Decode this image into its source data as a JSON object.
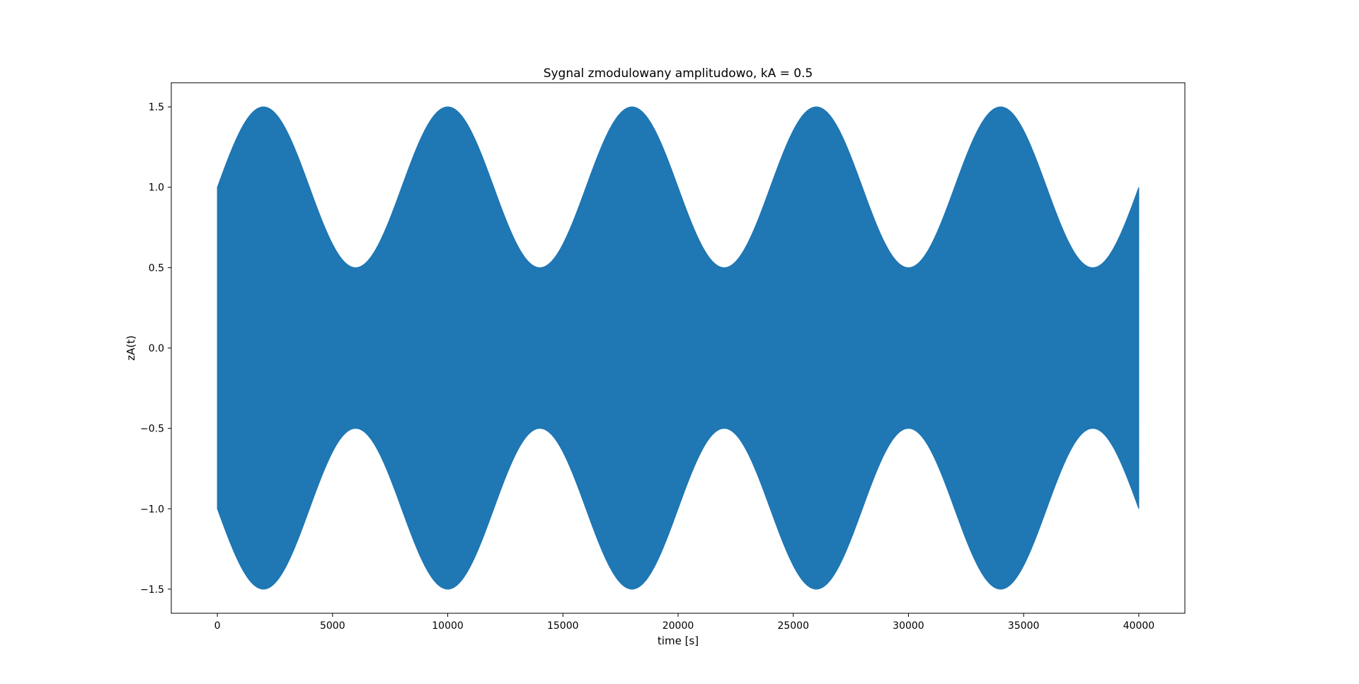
{
  "chart_data": {
    "type": "area",
    "title": "Sygnal zmodulowany amplitudowo, kA = 0.5",
    "xlabel": "time [s]",
    "ylabel": "zA(t)",
    "xlim": [
      -2000,
      42000
    ],
    "ylim": [
      -1.65,
      1.65
    ],
    "xticks": [
      0,
      5000,
      10000,
      15000,
      20000,
      25000,
      30000,
      35000,
      40000
    ],
    "xtick_labels": [
      "0",
      "5000",
      "10000",
      "15000",
      "20000",
      "25000",
      "30000",
      "35000",
      "40000"
    ],
    "yticks": [
      1.5,
      1.0,
      0.5,
      0.0,
      -0.5,
      -1.0,
      -1.5
    ],
    "ytick_labels": [
      "1.5",
      "1.0",
      "0.5",
      "0.0",
      "−0.5",
      "−1.0",
      "−1.5"
    ],
    "grid": false,
    "series": [
      {
        "color": "#1f77b4",
        "envelope": {
          "x": [
            0,
            2000,
            4000,
            6000,
            8000,
            10000,
            12000,
            14000,
            16000,
            18000,
            20000,
            22000,
            24000,
            26000,
            28000,
            30000,
            32000,
            34000,
            36000,
            38000,
            40000
          ],
          "upper": [
            1.0,
            1.5,
            1.0,
            0.5,
            1.0,
            1.5,
            1.0,
            0.5,
            1.0,
            1.5,
            1.0,
            0.5,
            1.0,
            1.5,
            1.0,
            0.5,
            1.0,
            1.5,
            1.0,
            0.5,
            1.0
          ],
          "lower": [
            -1.0,
            -1.5,
            -1.0,
            -0.5,
            -1.0,
            -1.5,
            -1.0,
            -0.5,
            -1.0,
            -1.5,
            -1.0,
            -0.5,
            -1.0,
            -1.5,
            -1.0,
            -0.5,
            -1.0,
            -1.5,
            -1.0,
            -0.5,
            -1.0
          ]
        },
        "carrier_amplitude": 1.0,
        "modulation_index": 0.5,
        "modulation_period": 8000
      }
    ]
  }
}
